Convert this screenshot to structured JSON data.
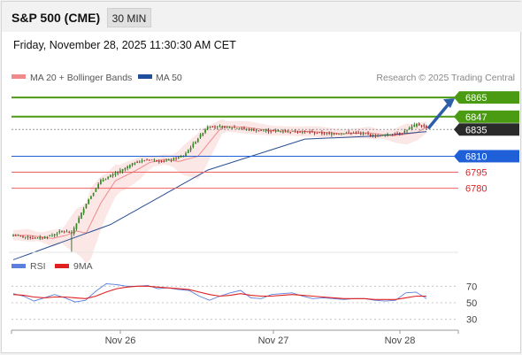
{
  "header": {
    "title": "S&P 500 (CME)",
    "timeframe": "30 MIN",
    "timestamp": "Friday, November 28, 2025 11:30:30 AM CET"
  },
  "legend": {
    "items": [
      {
        "label": "MA 20 + Bollinger Bands",
        "color": "#f08a8a"
      },
      {
        "label": "MA 50",
        "color": "#1f4e9c"
      }
    ],
    "credit": "Research © 2025 Trading Central"
  },
  "rsi_legend": {
    "items": [
      {
        "label": "RSI",
        "color": "#5b7fdc"
      },
      {
        "label": "9MA",
        "color": "#e02020"
      }
    ]
  },
  "colors": {
    "up": "#2e8b1e",
    "down": "#d02020",
    "resistance": "#4a9a12",
    "support_blue": "#1f5fd8",
    "support_red": "#f06060",
    "current": "#2a2a2a",
    "arrow": "#2d5fa8"
  },
  "chart_data": [
    {
      "type": "candlestick",
      "title": "S&P 500 (CME)",
      "x_tick_labels": [
        "Nov 26",
        "Nov 27",
        "Nov 28"
      ],
      "ylim": [
        6720,
        6880
      ],
      "levels": [
        {
          "label": "6865",
          "value": 6865,
          "kind": "resistance"
        },
        {
          "label": "6847",
          "value": 6847,
          "kind": "resistance"
        },
        {
          "label": "6835",
          "value": 6835,
          "kind": "current"
        },
        {
          "label": "6810",
          "value": 6810,
          "kind": "support-blue"
        },
        {
          "label": "6795",
          "value": 6795,
          "kind": "support-red"
        },
        {
          "label": "6780",
          "value": 6780,
          "kind": "support-red"
        }
      ],
      "anchors": [
        [
          0,
          6736
        ],
        [
          10,
          6733
        ],
        [
          16,
          6736
        ],
        [
          20,
          6740
        ],
        [
          24,
          6738
        ],
        [
          30,
          6766
        ],
        [
          36,
          6787
        ],
        [
          44,
          6796
        ],
        [
          50,
          6804
        ],
        [
          56,
          6807
        ],
        [
          62,
          6805
        ],
        [
          70,
          6810
        ],
        [
          80,
          6838
        ],
        [
          90,
          6837
        ],
        [
          100,
          6834
        ],
        [
          118,
          6833
        ],
        [
          130,
          6831
        ],
        [
          140,
          6832
        ],
        [
          150,
          6829
        ],
        [
          160,
          6832
        ],
        [
          166,
          6840
        ],
        [
          170,
          6837
        ]
      ],
      "ma50": [
        [
          0,
          6713
        ],
        [
          40,
          6746
        ],
        [
          80,
          6797
        ],
        [
          120,
          6826
        ],
        [
          150,
          6829
        ],
        [
          170,
          6833
        ]
      ],
      "projection": {
        "from": 6836,
        "to": 6865
      }
    },
    {
      "type": "line",
      "title": "RSI",
      "ylim": [
        20,
        80
      ],
      "y_tick_labels": [
        "70",
        "50",
        "30"
      ],
      "series": [
        {
          "name": "RSI",
          "values": [
            61,
            58,
            52,
            56,
            60,
            56,
            51,
            53,
            64,
            73,
            72,
            70,
            70,
            71,
            67,
            68,
            66,
            65,
            58,
            53,
            58,
            62,
            65,
            56,
            55,
            60,
            61,
            62,
            58,
            55,
            56,
            55,
            54,
            55,
            55,
            53,
            52,
            53,
            62,
            63,
            55
          ]
        },
        {
          "name": "9MA",
          "values": [
            60,
            59,
            57,
            56,
            57,
            57,
            56,
            55,
            58,
            63,
            67,
            69,
            70,
            70,
            69,
            68,
            67,
            66,
            63,
            60,
            58,
            59,
            61,
            59,
            58,
            58,
            59,
            60,
            59,
            58,
            57,
            56,
            55,
            55,
            55,
            54,
            54,
            54,
            56,
            58,
            58
          ]
        }
      ]
    }
  ]
}
